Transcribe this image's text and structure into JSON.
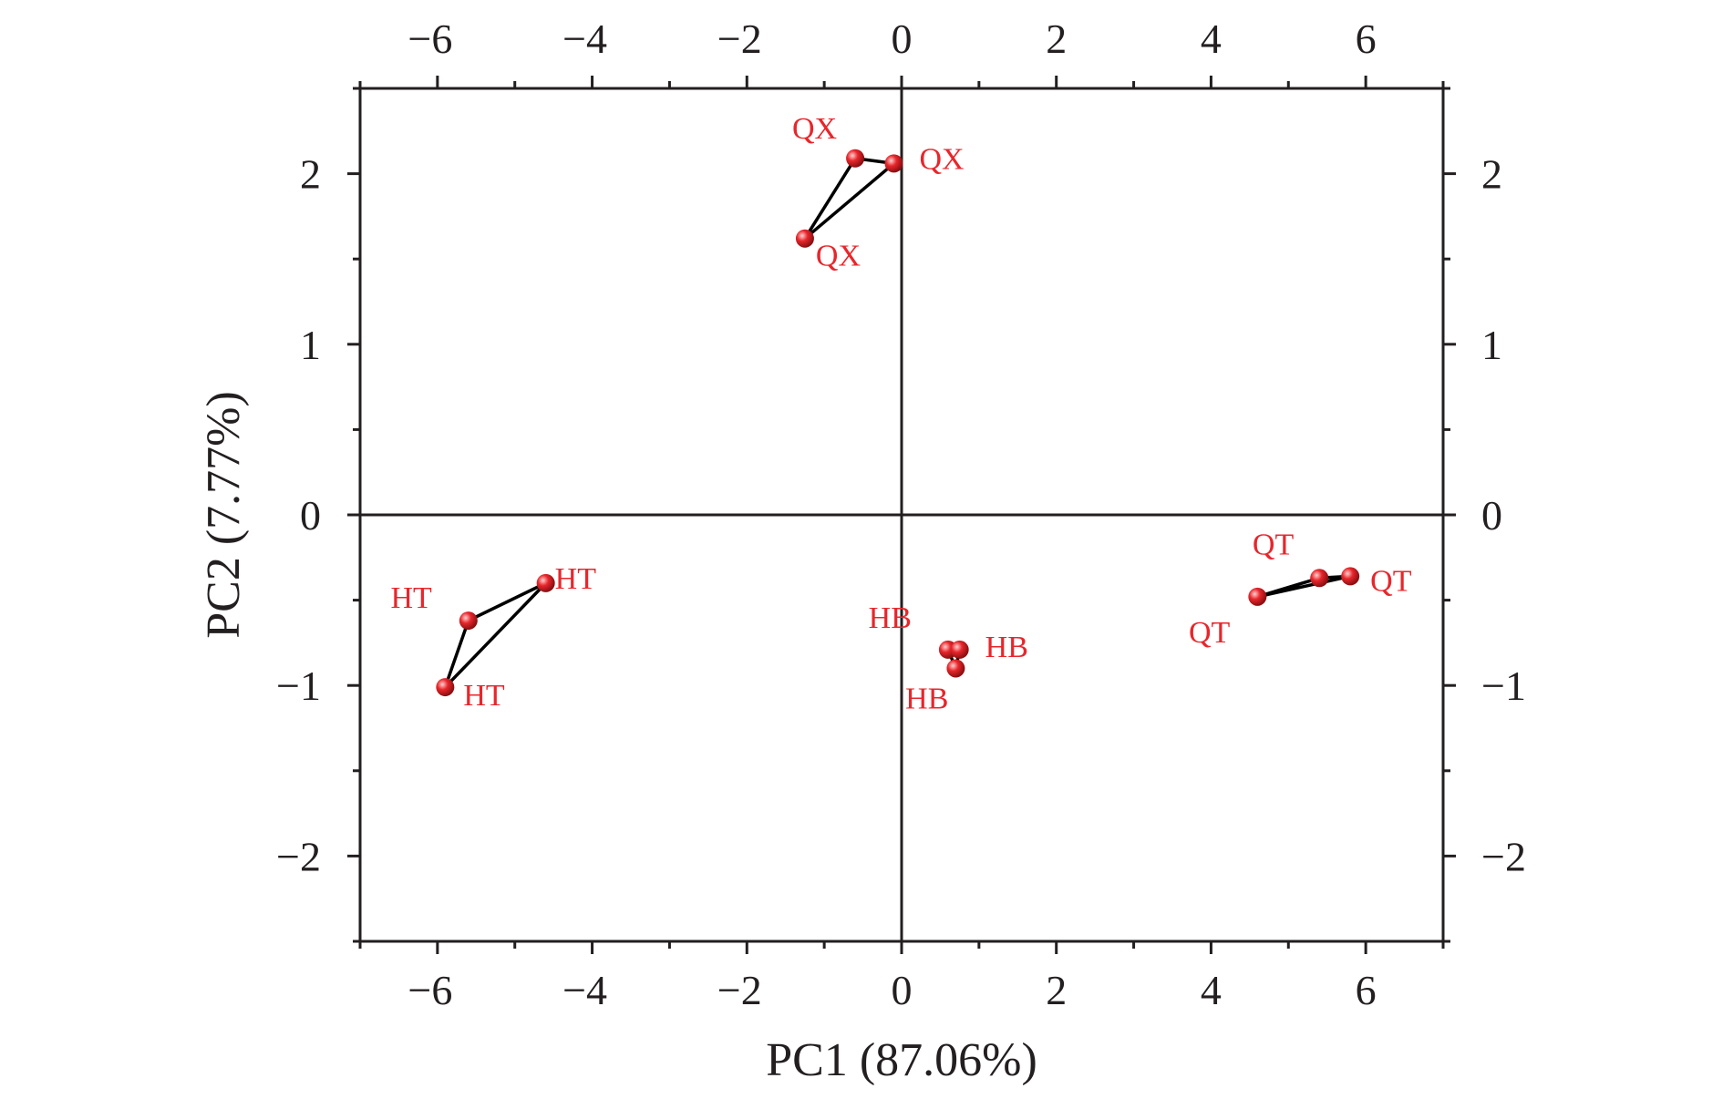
{
  "chart_data": {
    "type": "scatter",
    "title": "",
    "xlabel": "PC1 (87.06%)",
    "ylabel": "PC2 (7.77%)",
    "xlim": [
      -7,
      7
    ],
    "ylim": [
      -2.5,
      2.5
    ],
    "x_ticks": [
      -6,
      -4,
      -2,
      0,
      2,
      4,
      6
    ],
    "y_ticks": [
      -2,
      -1,
      0,
      1,
      2
    ],
    "x_tick_labels": [
      "−6",
      "−4",
      "−2",
      "0",
      "2",
      "4",
      "6"
    ],
    "y_tick_labels": [
      "−2",
      "−1",
      "0",
      "1",
      "2"
    ],
    "grid": false,
    "zero_lines": true,
    "mirror_axes": true,
    "point_color": "#e8262b",
    "hull_color": "#000000",
    "groups": [
      {
        "points": [
          {
            "x": -0.6,
            "y": 2.09,
            "label": "QX"
          },
          {
            "x": -0.1,
            "y": 2.06,
            "label": "QX"
          },
          {
            "x": -1.25,
            "y": 1.62,
            "label": "QX"
          }
        ]
      },
      {
        "points": [
          {
            "x": -4.6,
            "y": -0.4,
            "label": "HT"
          },
          {
            "x": -5.6,
            "y": -0.62,
            "label": "HT"
          },
          {
            "x": -5.9,
            "y": -1.01,
            "label": "HT"
          }
        ]
      },
      {
        "points": [
          {
            "x": 0.6,
            "y": -0.79,
            "label": "HB"
          },
          {
            "x": 0.75,
            "y": -0.79,
            "label": "HB"
          },
          {
            "x": 0.7,
            "y": -0.9,
            "label": "HB"
          }
        ]
      },
      {
        "points": [
          {
            "x": 5.4,
            "y": -0.37,
            "label": "QT"
          },
          {
            "x": 5.8,
            "y": -0.36,
            "label": "QT"
          },
          {
            "x": 4.6,
            "y": -0.48,
            "label": "QT"
          }
        ]
      }
    ]
  }
}
